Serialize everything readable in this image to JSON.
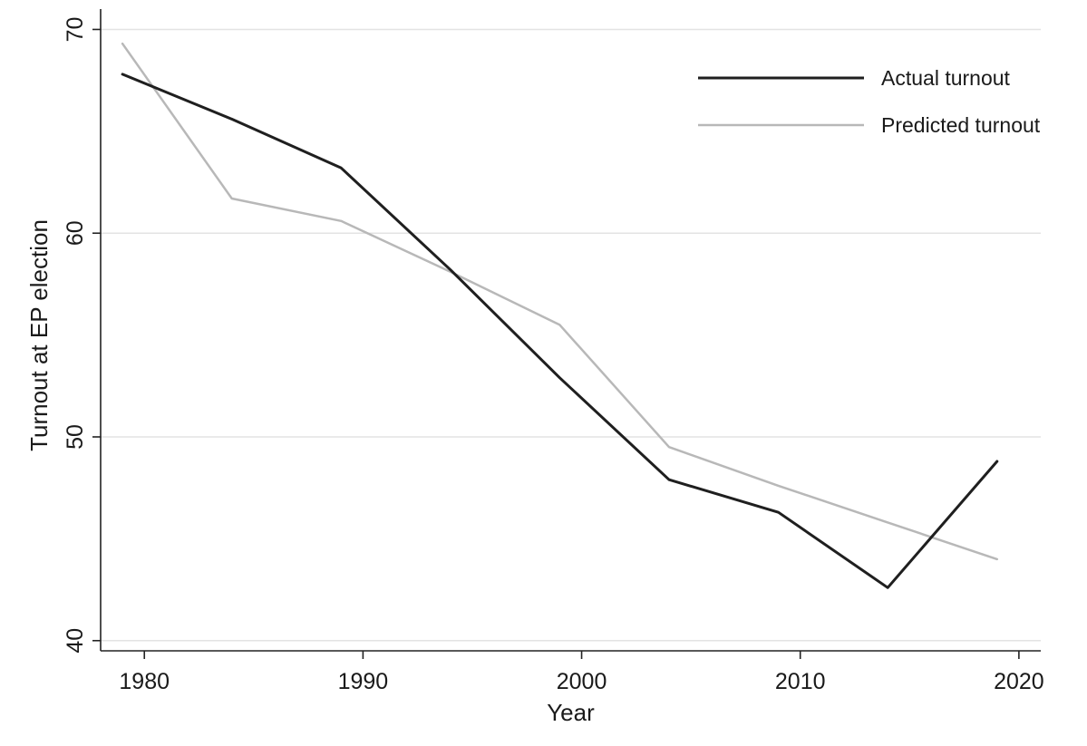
{
  "chart_data": {
    "type": "line",
    "title": "",
    "xlabel": "Year",
    "ylabel": "Turnout at EP election",
    "xlim": [
      1978,
      2021
    ],
    "ylim": [
      39.5,
      71
    ],
    "xticks": [
      1980,
      1990,
      2000,
      2010,
      2020
    ],
    "yticks": [
      40,
      50,
      60,
      70
    ],
    "grid": "horizontal",
    "legend_position": "top-right",
    "series": [
      {
        "name": "Actual turnout",
        "color": "#1f1f1f",
        "x": [
          1979,
          1984,
          1989,
          1994,
          1999,
          2004,
          2009,
          2014,
          2019
        ],
        "y": [
          67.8,
          65.6,
          63.2,
          58.2,
          52.9,
          47.9,
          46.3,
          42.6,
          48.8
        ]
      },
      {
        "name": "Predicted turnout",
        "color": "#b8b8b8",
        "x": [
          1979,
          1984,
          1989,
          1994,
          1999,
          2004,
          2009,
          2014,
          2019
        ],
        "y": [
          69.3,
          61.7,
          60.6,
          58.1,
          55.5,
          49.5,
          47.6,
          45.8,
          44.0
        ]
      }
    ]
  }
}
